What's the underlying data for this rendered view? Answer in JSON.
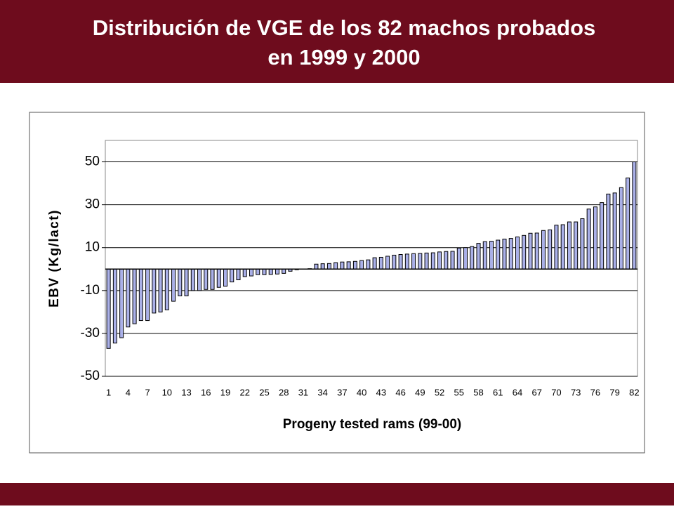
{
  "chart_data": {
    "type": "bar",
    "title": [
      "Distribución de VGE de los 82 machos probados",
      "en 1999 y 2000"
    ],
    "x_label": "Progeny tested rams (99-00)",
    "y_label": "EBV (Kg/lact)",
    "categories": [
      "1",
      null,
      null,
      "4",
      null,
      null,
      "7",
      null,
      null,
      "10",
      null,
      null,
      "13",
      null,
      null,
      "16",
      null,
      null,
      "19",
      null,
      null,
      "22",
      null,
      null,
      "25",
      null,
      null,
      "28",
      null,
      null,
      "31",
      null,
      null,
      "34",
      null,
      null,
      "37",
      null,
      null,
      "40",
      null,
      null,
      "43",
      null,
      null,
      "46",
      null,
      null,
      "49",
      null,
      null,
      "52",
      null,
      null,
      "55",
      null,
      null,
      "58",
      null,
      null,
      "61",
      null,
      null,
      "64",
      null,
      null,
      "67",
      null,
      null,
      "70",
      null,
      null,
      "73",
      null,
      null,
      "76",
      null,
      null,
      "79",
      null,
      null,
      "82"
    ],
    "values": [
      -37,
      -34.5,
      -32,
      -27,
      -25.5,
      -24,
      -24,
      -20.5,
      -20,
      -19,
      -15,
      -12.5,
      -12.5,
      -10,
      -10,
      -9.5,
      -9.5,
      -8.5,
      -8,
      -6,
      -5,
      -3.5,
      -3.2,
      -2.6,
      -2.6,
      -2.5,
      -2.3,
      -2,
      -1,
      -0.3,
      0,
      0.2,
      2.3,
      2.5,
      2.6,
      3,
      3.3,
      3.4,
      3.6,
      4,
      4.3,
      5.3,
      5.5,
      6,
      6.5,
      6.8,
      7,
      7.2,
      7.3,
      7.5,
      7.6,
      8,
      8.2,
      8.3,
      9.8,
      10,
      10.5,
      12,
      12.8,
      13,
      13.5,
      14,
      14.3,
      15,
      15.7,
      16.7,
      16.8,
      18,
      18.3,
      20.5,
      20.7,
      22,
      22,
      23.5,
      28,
      29,
      31,
      35,
      35.5,
      38,
      42.5,
      50
    ],
    "color": "#aab0e8",
    "ylim": [
      -50,
      60
    ],
    "yticks": [
      -50,
      -30,
      -10,
      10,
      30,
      50
    ],
    "grid": true
  }
}
